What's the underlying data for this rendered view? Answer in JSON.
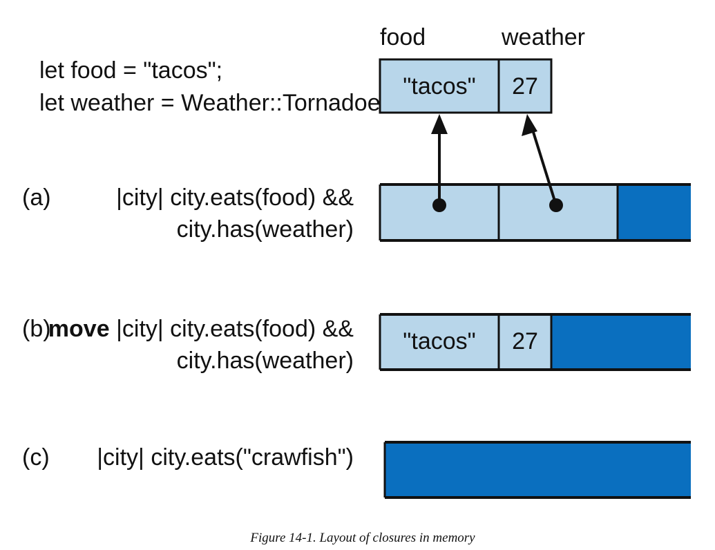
{
  "top": {
    "col_food": "food",
    "col_weather": "weather",
    "code_line1": "let food = \"tacos\";",
    "code_line2": "let weather = Weather::Tornadoes;",
    "cell_food_value": "\"tacos\"",
    "cell_weather_value": "27"
  },
  "row_a": {
    "label": "(a)",
    "line1": "|city| city.eats(food) &&",
    "line2": "city.has(weather)"
  },
  "row_b": {
    "label": "(b)",
    "keyword": "move",
    "line1_rest": " |city| city.eats(food) &&",
    "line2": "city.has(weather)",
    "cell_food_value": "\"tacos\"",
    "cell_weather_value": "27"
  },
  "row_c": {
    "label": "(c)",
    "line1": "|city| city.eats(\"crawfish\")"
  },
  "caption": "Figure 14-1. Layout of closures in memory",
  "colors": {
    "light_cell": "#b8d6ea",
    "dark_cell": "#0a6fbf",
    "ink": "#111111"
  }
}
